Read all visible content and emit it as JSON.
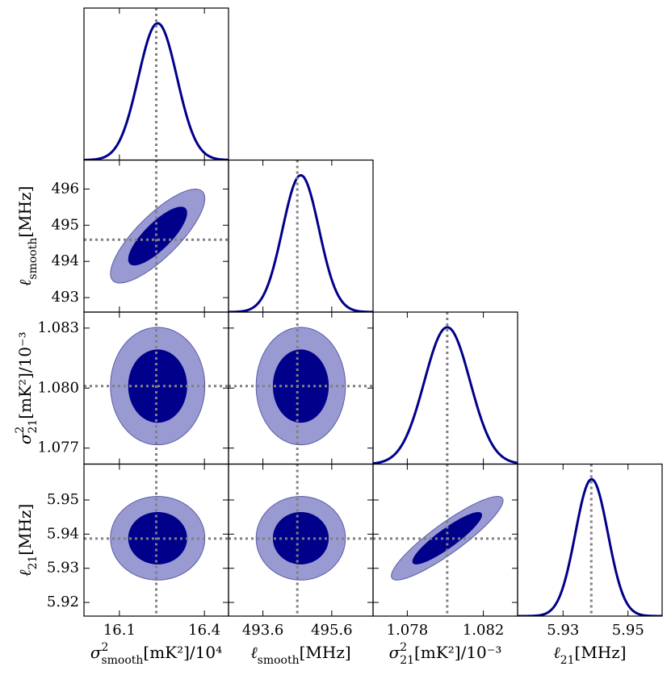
{
  "chart_data": {
    "type": "corner",
    "levels": [
      0.68,
      0.95
    ],
    "colors": {
      "outer": "#9a9ad2",
      "outer_edge": "#5a5aa8",
      "inner": "#00008b",
      "line": "#00008b",
      "truth": "#808080"
    },
    "parameters": [
      {
        "symbol": "σ",
        "sup": "2",
        "sub": "smooth",
        "unit": "[mK²]/10⁴",
        "lim": [
          15.975,
          16.485
        ],
        "mean": 16.235,
        "sigma": 0.068,
        "truth": 16.23,
        "xticks": [
          16.1,
          16.4
        ],
        "yticks": []
      },
      {
        "symbol": "ℓ",
        "sub": "smooth",
        "unit": "[MHz]",
        "lim": [
          492.6,
          496.8
        ],
        "mean": 494.7,
        "sigma": 0.53,
        "truth": 494.6,
        "xticks": [
          493.6,
          495.6
        ],
        "yticks": [
          493,
          494,
          495,
          496
        ]
      },
      {
        "symbol": "σ",
        "sup": "2",
        "sub": "21",
        "unit": "[mK²]/10⁻³",
        "lim": [
          1.0762,
          1.0838
        ],
        "mean": 1.0801,
        "sigma": 0.0012,
        "truth": 1.0801,
        "xticks": [
          1.078,
          1.082
        ],
        "yticks": [
          1.077,
          {
            "value": 1.08,
            "label": "1.080"
          },
          1.083
        ]
      },
      {
        "symbol": "ℓ",
        "sub": "21",
        "unit": "[MHz]",
        "lim": [
          5.916,
          5.9605
        ],
        "mean": 5.9388,
        "sigma": 0.005,
        "truth": 5.9387,
        "xticks": [
          5.93,
          5.95
        ],
        "yticks": [
          5.92,
          5.93,
          5.94,
          5.95
        ]
      }
    ],
    "correlations": [
      [
        0.8
      ],
      [
        0,
        0
      ],
      [
        0,
        0,
        0.9
      ]
    ]
  }
}
